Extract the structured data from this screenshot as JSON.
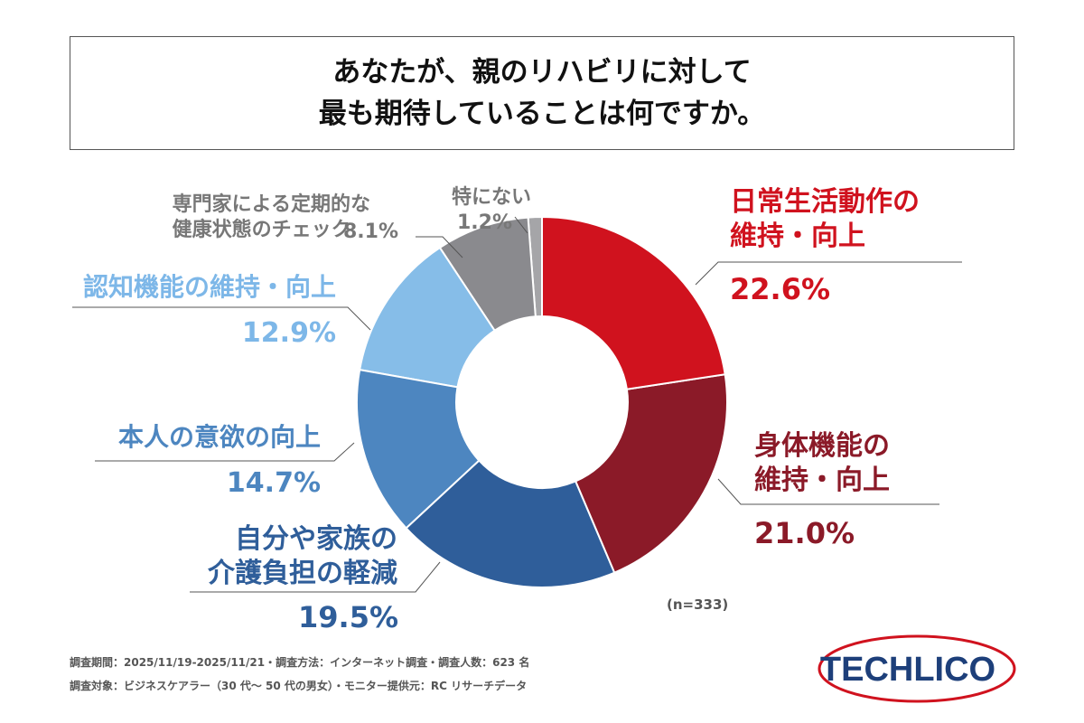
{
  "chart_data": {
    "type": "donut",
    "title": "あなたが、親のリハビリに対して\n最も期待していることは何ですか。",
    "categories": [
      "日常生活動作の\n維持・向上",
      "身体機能の\n維持・向上",
      "自分や家族の\n介護負担の軽減",
      "本人の意欲の向上",
      "認知機能の維持・向上",
      "専門家による定期的な\n健康状態のチェック",
      "特にない"
    ],
    "values": [
      22.6,
      21.0,
      19.5,
      14.7,
      12.9,
      8.1,
      1.2
    ],
    "value_labels": [
      "22.6%",
      "21.0%",
      "19.5%",
      "14.7%",
      "12.9%",
      "8.1%",
      "1.2%"
    ],
    "colors": [
      "#d0121e",
      "#8b1a28",
      "#2f5e9a",
      "#4d86c0",
      "#86bde8",
      "#8a8a8e",
      "#a5a5a8"
    ],
    "note": "(n=333)",
    "footnotes": [
      "調査期間：2025/11/19-2025/11/21・調査方法：インターネット調査・調査人数：623 名",
      "調査対象：ビジネスケアラー（30 代～ 50 代の男女）・モニター提供元：RC リサーチデータ"
    ],
    "logo": "TECHLICO"
  }
}
